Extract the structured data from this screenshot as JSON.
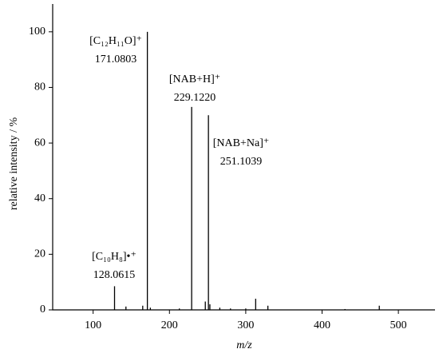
{
  "chart_data": {
    "type": "stem",
    "x_label": "m/z",
    "y_label": "relative intensity / %",
    "x": [
      128.06,
      143,
      165,
      171.08,
      175,
      213,
      229.12,
      247,
      251.1,
      253,
      266,
      280,
      300,
      313,
      329,
      430,
      475
    ],
    "values": [
      8.5,
      1.2,
      1.5,
      100,
      0.8,
      0.5,
      73,
      3,
      70,
      2,
      0.8,
      0.5,
      0.5,
      4,
      1.5,
      0.3,
      1.5
    ],
    "color": "#000000",
    "xlim": [
      47,
      548
    ],
    "ylim": [
      0,
      110
    ],
    "xticks": [
      100,
      200,
      300,
      400,
      500
    ],
    "yticks": [
      0,
      20,
      40,
      60,
      80,
      100
    ],
    "annotations": [
      {
        "label": "[C₁₂H₁₁O]⁺",
        "mass": "171.0803"
      },
      {
        "label": "[NAB+H]⁺",
        "mass": "229.1220"
      },
      {
        "label": "[NAB+Na]⁺",
        "mass": "251.1039"
      },
      {
        "label": "[C₁₀H₈]•⁺",
        "mass": "128.0615"
      }
    ]
  }
}
